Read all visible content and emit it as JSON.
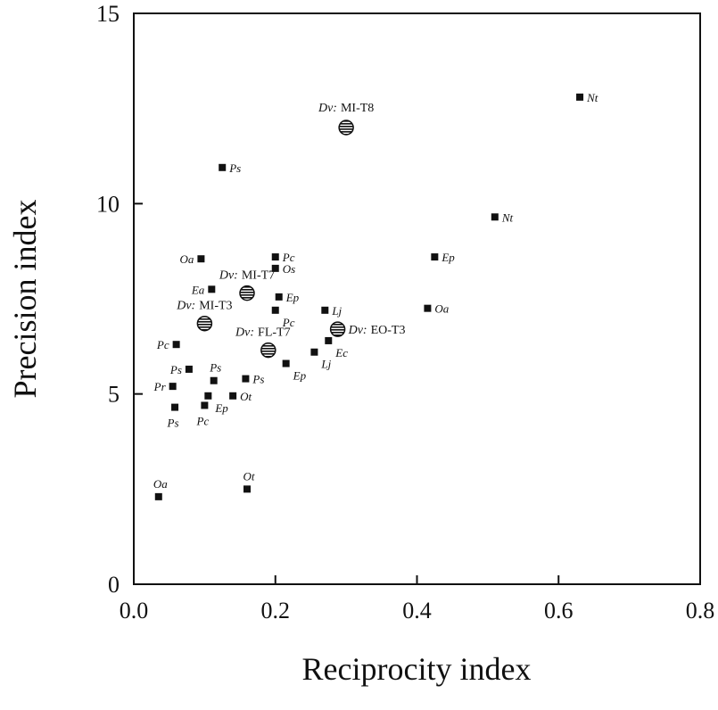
{
  "chart_data": {
    "type": "scatter",
    "xlabel": "Reciprocity index",
    "ylabel": "Precision index",
    "xlim": [
      0.0,
      0.8
    ],
    "ylim": [
      0,
      15
    ],
    "x_ticks": [
      "0.0",
      "0.2",
      "0.4",
      "0.6",
      "0.8"
    ],
    "y_ticks": [
      "0",
      "5",
      "10",
      "15"
    ],
    "grid": false,
    "legend": "none",
    "series": [
      {
        "marker": "square",
        "points": [
          {
            "x": 0.125,
            "y": 10.95,
            "label": "Ps"
          },
          {
            "x": 0.63,
            "y": 12.8,
            "label": "Nt"
          },
          {
            "x": 0.51,
            "y": 9.65,
            "label": "Nt"
          },
          {
            "x": 0.095,
            "y": 8.55,
            "label": "Oa"
          },
          {
            "x": 0.2,
            "y": 8.6,
            "label": "Pc"
          },
          {
            "x": 0.2,
            "y": 8.3,
            "label": "Os"
          },
          {
            "x": 0.11,
            "y": 7.75,
            "label": "Ea"
          },
          {
            "x": 0.205,
            "y": 7.55,
            "label": "Ep"
          },
          {
            "x": 0.2,
            "y": 7.2,
            "label": "Pc"
          },
          {
            "x": 0.27,
            "y": 7.2,
            "label": "Lj"
          },
          {
            "x": 0.425,
            "y": 8.6,
            "label": "Ep"
          },
          {
            "x": 0.415,
            "y": 7.25,
            "label": "Oa"
          },
          {
            "x": 0.06,
            "y": 6.3,
            "label": "Pc"
          },
          {
            "x": 0.275,
            "y": 6.4,
            "label": "Ec"
          },
          {
            "x": 0.255,
            "y": 6.1,
            "label": "Lj"
          },
          {
            "x": 0.215,
            "y": 5.8,
            "label": "Ep"
          },
          {
            "x": 0.078,
            "y": 5.65,
            "label": "Ps"
          },
          {
            "x": 0.113,
            "y": 5.35,
            "label": "Ps"
          },
          {
            "x": 0.158,
            "y": 5.4,
            "label": "Ps"
          },
          {
            "x": 0.055,
            "y": 5.2,
            "label": "Pr"
          },
          {
            "x": 0.105,
            "y": 4.95,
            "label": "Ep"
          },
          {
            "x": 0.14,
            "y": 4.95,
            "label": "Ot"
          },
          {
            "x": 0.1,
            "y": 4.7,
            "label": "Pc"
          },
          {
            "x": 0.058,
            "y": 4.65,
            "label": "Ps"
          },
          {
            "x": 0.035,
            "y": 2.3,
            "label": "Oa"
          },
          {
            "x": 0.16,
            "y": 2.5,
            "label": "Ot"
          }
        ]
      },
      {
        "marker": "hatched-circle",
        "points": [
          {
            "x": 0.3,
            "y": 12.0,
            "label_species": "Dv:",
            "label_code": "MI-T8"
          },
          {
            "x": 0.16,
            "y": 7.65,
            "label_species": "Dv:",
            "label_code": "MI-T7"
          },
          {
            "x": 0.1,
            "y": 6.85,
            "label_species": "Dv:",
            "label_code": "MI-T3"
          },
          {
            "x": 0.19,
            "y": 6.15,
            "label_species": "Dv:",
            "label_code": "FL-T7"
          },
          {
            "x": 0.288,
            "y": 6.7,
            "label_species": "Dv:",
            "label_code": "EO-T3"
          }
        ]
      }
    ]
  }
}
